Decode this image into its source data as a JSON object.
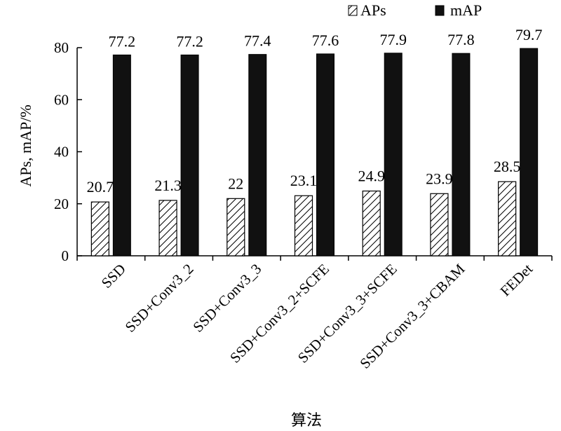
{
  "chart_data": {
    "type": "bar",
    "title": "",
    "xlabel": "算法",
    "ylabel": "APs, mAP/%",
    "ylim": [
      0,
      80
    ],
    "yticks": [
      0,
      20,
      40,
      60,
      80
    ],
    "grid": false,
    "legend_position": "top-right",
    "categories": [
      "SSD",
      "SSD+Conv3_2",
      "SSD+Conv3_3",
      "SSD+Conv3_2+SCFE",
      "SSD+Conv3_3+SCFE",
      "SSD+Conv3_3+CBAM",
      "FEDet"
    ],
    "series": [
      {
        "name": "APs",
        "values": [
          20.7,
          21.3,
          22,
          23.1,
          24.9,
          23.9,
          28.5
        ],
        "labels": [
          "20.7",
          "21.3",
          "22",
          "23.1",
          "24.9",
          "23.9",
          "28.5"
        ],
        "fill": "hatch",
        "color": "#000000"
      },
      {
        "name": "mAP",
        "values": [
          77.2,
          77.2,
          77.4,
          77.6,
          77.9,
          77.8,
          79.7
        ],
        "labels": [
          "77.2",
          "77.2",
          "77.4",
          "77.6",
          "77.9",
          "77.8",
          "79.7"
        ],
        "fill": "solid",
        "color": "#111111"
      }
    ]
  }
}
